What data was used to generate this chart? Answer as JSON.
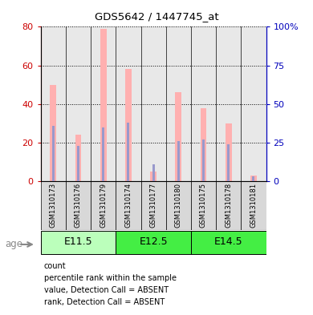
{
  "title": "GDS5642 / 1447745_at",
  "samples": [
    "GSM1310173",
    "GSM1310176",
    "GSM1310179",
    "GSM1310174",
    "GSM1310177",
    "GSM1310180",
    "GSM1310175",
    "GSM1310178",
    "GSM1310181"
  ],
  "value_absent": [
    50,
    24,
    79,
    58,
    5,
    46,
    38,
    30,
    3
  ],
  "rank_absent": [
    36,
    23,
    35,
    38,
    11,
    26,
    27,
    24,
    3
  ],
  "ylim_left": [
    0,
    80
  ],
  "ylim_right": [
    0,
    100
  ],
  "yticks_left": [
    0,
    20,
    40,
    60,
    80
  ],
  "yticks_right": [
    0,
    25,
    50,
    75,
    100
  ],
  "bar_pink": "#FFB0B0",
  "bar_blue": "#9999CC",
  "age_groups": [
    {
      "label": "E11.5",
      "samples": [
        0,
        1,
        2
      ],
      "color": "#AAFFAA"
    },
    {
      "label": "E12.5",
      "samples": [
        3,
        4,
        5
      ],
      "color": "#33DD33"
    },
    {
      "label": "E14.5",
      "samples": [
        6,
        7,
        8
      ],
      "color": "#33DD33"
    }
  ],
  "legend_items": [
    {
      "color": "#CC0000",
      "label": "count"
    },
    {
      "color": "#0000BB",
      "label": "percentile rank within the sample"
    },
    {
      "color": "#FFB0B0",
      "label": "value, Detection Call = ABSENT"
    },
    {
      "color": "#AAAADD",
      "label": "rank, Detection Call = ABSENT"
    }
  ],
  "axis_color_left": "#CC0000",
  "axis_color_right": "#0000BB",
  "age_label": "age"
}
